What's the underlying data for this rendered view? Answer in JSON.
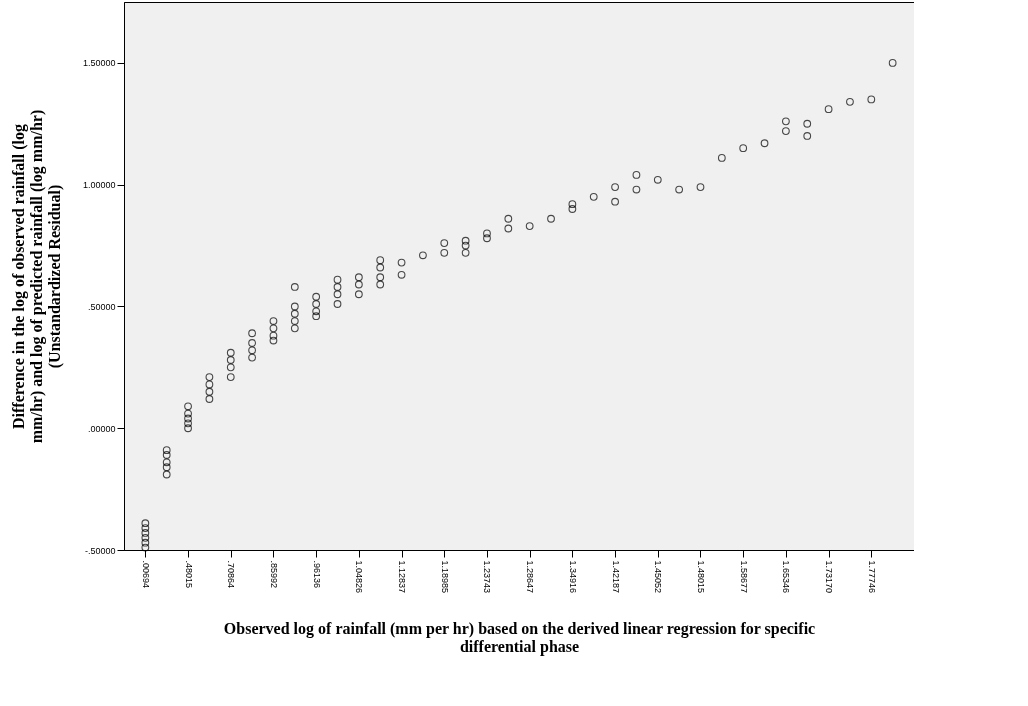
{
  "chart_data": {
    "type": "scatter",
    "xlabel": "Observed log of rainfall (mm per hr) based on the derived linear regression for specific differential phase",
    "ylabel": "Difference in the log of observed rainfall (log mm/hr) and log of predicted rainfall (log mm/hr) (Unstandardized Residual)",
    "categories": [
      ".00694",
      null,
      ".48015",
      null,
      ".70864",
      null,
      ".85992",
      null,
      ".96136",
      null,
      "1.04826",
      null,
      "1.12837",
      null,
      "1.18985",
      null,
      "1.23743",
      null,
      "1.28647",
      null,
      "1.34916",
      null,
      "1.42187",
      null,
      "1.45052",
      null,
      "1.48015",
      null,
      "1.58677",
      null,
      "1.65346",
      null,
      "1.73170",
      null,
      "1.77746",
      null
    ],
    "series": [
      {
        "color": "#000000",
        "values": [
          -0.39,
          -0.09,
          0.09,
          0.21,
          0.31,
          0.39,
          0.44,
          0.58,
          0.54,
          0.61,
          0.62,
          0.69,
          0.68,
          0.71,
          0.76,
          0.77,
          0.8,
          0.86,
          0.83,
          0.86,
          0.92,
          0.95,
          0.99,
          1.04,
          1.02,
          0.98,
          0.99,
          1.11,
          1.15,
          1.17,
          1.26,
          1.25,
          1.31,
          1.34,
          1.35,
          1.5
        ]
      },
      {
        "color": "#000000",
        "values": [
          -0.41,
          -0.11,
          0.06,
          0.18,
          0.28,
          0.35,
          0.41,
          0.5,
          0.51,
          0.58,
          0.59,
          0.66,
          0.63,
          null,
          0.72,
          0.75,
          0.78,
          0.82,
          null,
          null,
          0.9,
          null,
          0.93,
          0.98,
          null,
          null,
          null,
          null,
          null,
          null,
          1.22,
          1.2,
          null,
          null,
          null,
          null
        ]
      },
      {
        "color": "#000000",
        "values": [
          -0.43,
          -0.14,
          0.04,
          0.15,
          0.25,
          0.32,
          0.38,
          0.47,
          0.48,
          0.55,
          0.55,
          0.62,
          null,
          null,
          null,
          0.72,
          null,
          null,
          null,
          null,
          null,
          null,
          null,
          null,
          null,
          null,
          null,
          null,
          null,
          null,
          null,
          null,
          null,
          null,
          null,
          null
        ]
      },
      {
        "color": "#000000",
        "values": [
          -0.45,
          -0.16,
          0.02,
          0.12,
          0.21,
          0.29,
          0.36,
          0.44,
          0.46,
          0.51,
          null,
          0.59,
          null,
          null,
          null,
          null,
          null,
          null,
          null,
          null,
          null,
          null,
          null,
          null,
          null,
          null,
          null,
          null,
          null,
          null,
          null,
          null,
          null,
          null,
          null,
          null
        ]
      },
      {
        "color": "#000000",
        "values": [
          -0.47,
          -0.19,
          0.0,
          null,
          null,
          null,
          null,
          0.41,
          null,
          null,
          null,
          null,
          null,
          null,
          null,
          null,
          null,
          null,
          null,
          null,
          null,
          null,
          null,
          null,
          null,
          null,
          null,
          null,
          null,
          null,
          null,
          null,
          null,
          null,
          null,
          null
        ]
      },
      {
        "color": "#000000",
        "values": [
          -0.49,
          null,
          null,
          null,
          null,
          null,
          null,
          null,
          null,
          null,
          null,
          null,
          null,
          null,
          null,
          null,
          null,
          null,
          null,
          null,
          null,
          null,
          null,
          null,
          null,
          null,
          null,
          null,
          null,
          null,
          null,
          null,
          null,
          null,
          null,
          null
        ]
      }
    ],
    "ylim": [
      -0.5,
      1.75
    ],
    "yticks": [
      {
        "value": -0.5,
        "label": "-.50000"
      },
      {
        "value": 0,
        "label": ".00000"
      },
      {
        "value": 0.5,
        "label": ".50000"
      },
      {
        "value": 1,
        "label": "1.00000"
      },
      {
        "value": 1.5,
        "label": "1.50000"
      }
    ],
    "marker": "circle",
    "grid": false
  }
}
